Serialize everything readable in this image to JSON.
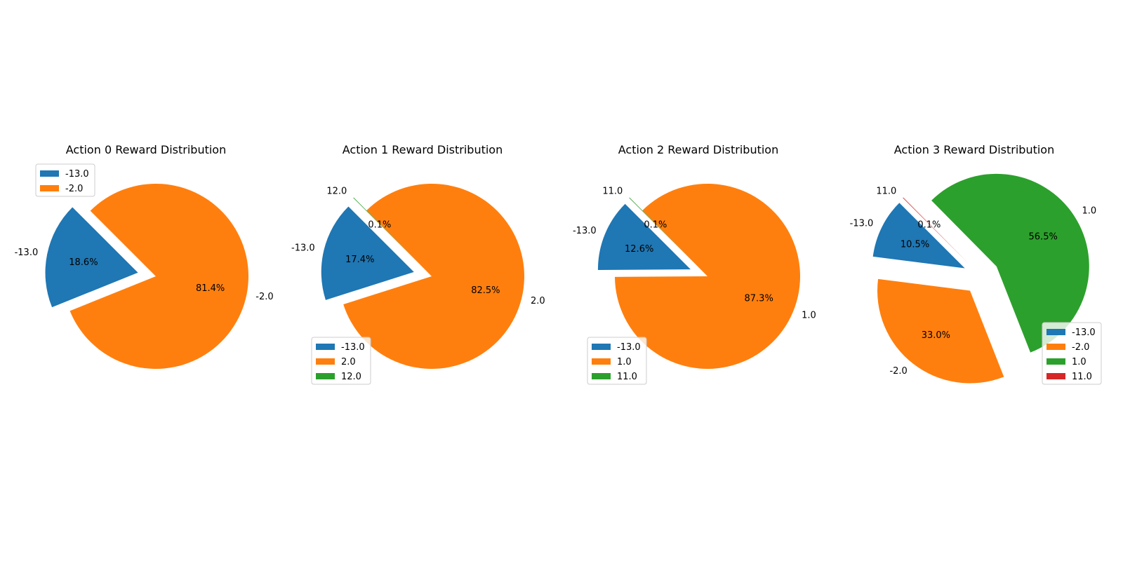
{
  "chart_data": [
    {
      "type": "pie",
      "title": "Action 0 Reward Distribution",
      "labels": [
        "-13.0",
        "-2.0"
      ],
      "values": [
        18.6,
        81.4
      ],
      "percent_labels": [
        "18.6%",
        "81.4%"
      ],
      "colors": [
        "#1f77b4",
        "#ff7f0e"
      ],
      "exploded": [
        "-13.0"
      ],
      "legend_loc": "upper left"
    },
    {
      "type": "pie",
      "title": "Action 1 Reward Distribution",
      "labels": [
        "-13.0",
        "2.0",
        "12.0"
      ],
      "values": [
        17.4,
        82.5,
        0.1
      ],
      "percent_labels": [
        "17.4%",
        "82.5%",
        "0.1%"
      ],
      "colors": [
        "#1f77b4",
        "#ff7f0e",
        "#2ca02c"
      ],
      "exploded": [
        "-13.0",
        "12.0"
      ],
      "legend_loc": "lower left"
    },
    {
      "type": "pie",
      "title": "Action 2 Reward Distribution",
      "labels": [
        "-13.0",
        "1.0",
        "11.0"
      ],
      "values": [
        12.6,
        87.3,
        0.1
      ],
      "percent_labels": [
        "12.6%",
        "87.3%",
        "0.1%"
      ],
      "colors": [
        "#1f77b4",
        "#ff7f0e",
        "#2ca02c"
      ],
      "exploded": [
        "-13.0",
        "11.0"
      ],
      "legend_loc": "lower left"
    },
    {
      "type": "pie",
      "title": "Action 3 Reward Distribution",
      "labels": [
        "-13.0",
        "-2.0",
        "1.0",
        "11.0"
      ],
      "values": [
        10.5,
        33.0,
        56.5,
        0.1
      ],
      "percent_labels": [
        "10.5%",
        "33.0%",
        "56.5%",
        "0.1%"
      ],
      "colors": [
        "#1f77b4",
        "#ff7f0e",
        "#2ca02c",
        "#d62728"
      ],
      "exploded": [
        "-13.0",
        "-2.0",
        "1.0",
        "11.0"
      ],
      "legend_loc": "lower right"
    }
  ]
}
